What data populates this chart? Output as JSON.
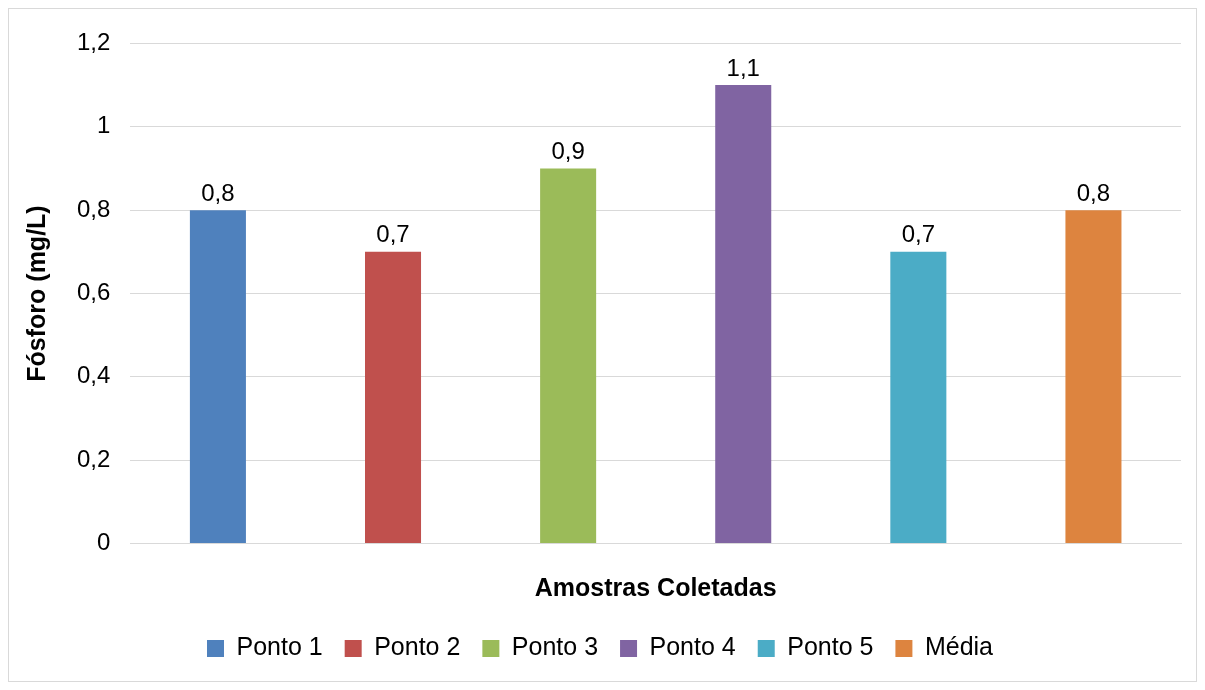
{
  "chart_data": {
    "type": "bar",
    "xlabel": "Amostras Coletadas",
    "ylabel": "Fósforo (mg/L)",
    "categories": [
      null
    ],
    "series": [
      {
        "name": "Ponto 1",
        "color": "#4f81bd",
        "values": [
          0.8
        ],
        "value_labels": [
          "0,8"
        ]
      },
      {
        "name": "Ponto 2",
        "color": "#c0504d",
        "values": [
          0.7
        ],
        "value_labels": [
          "0,7"
        ]
      },
      {
        "name": "Ponto 3",
        "color": "#9bbb59",
        "values": [
          0.9
        ],
        "value_labels": [
          "0,9"
        ]
      },
      {
        "name": "Ponto 4",
        "color": "#8064a2",
        "values": [
          1.1
        ],
        "value_labels": [
          "1,1"
        ]
      },
      {
        "name": "Ponto 5",
        "color": "#4bacc6",
        "values": [
          0.7
        ],
        "value_labels": [
          "0,7"
        ]
      },
      {
        "name": "Média",
        "color": "#dd843f",
        "values": [
          0.8
        ],
        "value_labels": [
          "0,8"
        ]
      }
    ],
    "ylim": [
      0,
      1.2
    ],
    "yticks": [
      0,
      {
        "value": 0.2,
        "label": "0,2"
      },
      {
        "value": 0.4,
        "label": "0,4"
      },
      {
        "value": 0.6,
        "label": "0,6"
      },
      {
        "value": 0.8,
        "label": "0,8"
      },
      1,
      {
        "value": 1.2,
        "label": "1,2"
      }
    ],
    "grid": "y",
    "legend": "bottom"
  }
}
